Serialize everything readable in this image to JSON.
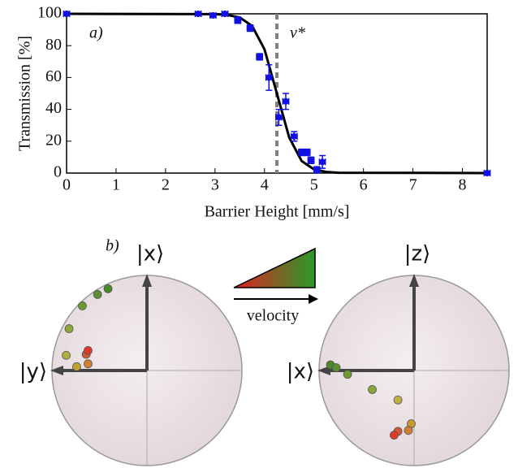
{
  "chart_data": {
    "type": "scatter",
    "label": "a)",
    "xlabel": "Barrier Height [mm/s]",
    "ylabel": "Transmission [%]",
    "xlim": [
      0,
      8.5
    ],
    "ylim": [
      0,
      100
    ],
    "xticks": [
      0,
      1,
      2,
      3,
      4,
      5,
      6,
      7,
      8
    ],
    "yticks": [
      0,
      20,
      40,
      60,
      80,
      100
    ],
    "points": {
      "color": "#1010e0",
      "x": [
        0,
        2.66,
        2.96,
        3.2,
        3.46,
        3.71,
        3.9,
        4.09,
        4.29,
        4.43,
        4.6,
        4.75,
        4.86,
        4.94,
        5.06,
        5.17,
        8.5
      ],
      "y": [
        100,
        100,
        99,
        100,
        96,
        91,
        73,
        60,
        35,
        45,
        23,
        13,
        13,
        8,
        2,
        7,
        0
      ],
      "yerr": [
        1,
        1,
        1,
        1,
        2,
        2,
        2,
        8,
        5,
        5,
        3,
        2,
        2,
        2,
        2,
        4,
        1
      ],
      "xerr": [
        0.06,
        0.06,
        0.06,
        0.06,
        0.06,
        0.06,
        0.06,
        0.06,
        0.06,
        0.06,
        0.06,
        0.06,
        0.06,
        0.06,
        0.06,
        0.06,
        0.06
      ]
    },
    "fit": {
      "color": "#000000",
      "x": [
        0,
        3,
        3.25,
        3.5,
        3.75,
        4,
        4.25,
        4.5,
        4.75,
        5,
        5.25,
        5.5,
        8.5
      ],
      "y": [
        100,
        99.8,
        99.3,
        97.7,
        92.4,
        77.7,
        50,
        22.3,
        7.6,
        2.3,
        0.7,
        0.2,
        0
      ]
    },
    "threshold": {
      "value": 4.25,
      "label": "v*",
      "color": "#808080"
    }
  },
  "panel_label": "b)",
  "legend_text": "velocity",
  "bloch": [
    {
      "vertical": "|x⟩",
      "horizontal": "|y⟩",
      "points": [
        {
          "u": -0.41,
          "v": 0.86,
          "color": "#4a8a2a"
        },
        {
          "u": -0.52,
          "v": 0.8,
          "color": "#5a9030"
        },
        {
          "u": -0.68,
          "v": 0.68,
          "color": "#6c9a30"
        },
        {
          "u": -0.82,
          "v": 0.44,
          "color": "#8aa838"
        },
        {
          "u": -0.85,
          "v": 0.16,
          "color": "#b0b040"
        },
        {
          "u": -0.74,
          "v": 0.04,
          "color": "#c0a030"
        },
        {
          "u": -0.64,
          "v": 0.17,
          "color": "#d05a30"
        },
        {
          "u": -0.62,
          "v": 0.21,
          "color": "#e03a2a"
        },
        {
          "u": -0.62,
          "v": 0.07,
          "color": "#d08030"
        }
      ]
    },
    {
      "vertical": "|z⟩",
      "horizontal": "|x⟩",
      "points": [
        {
          "u": -0.88,
          "v": 0.06,
          "color": "#4a8a2a"
        },
        {
          "u": -0.82,
          "v": 0.03,
          "color": "#5a9030"
        },
        {
          "u": -0.7,
          "v": -0.04,
          "color": "#6c9a30"
        },
        {
          "u": -0.44,
          "v": -0.2,
          "color": "#8aa838"
        },
        {
          "u": -0.17,
          "v": -0.31,
          "color": "#c0b040"
        },
        {
          "u": -0.03,
          "v": -0.56,
          "color": "#c89a30"
        },
        {
          "u": -0.17,
          "v": -0.64,
          "color": "#d05a30"
        },
        {
          "u": -0.21,
          "v": -0.68,
          "color": "#e03a2a"
        },
        {
          "u": -0.06,
          "v": -0.63,
          "color": "#d08030"
        }
      ]
    }
  ]
}
